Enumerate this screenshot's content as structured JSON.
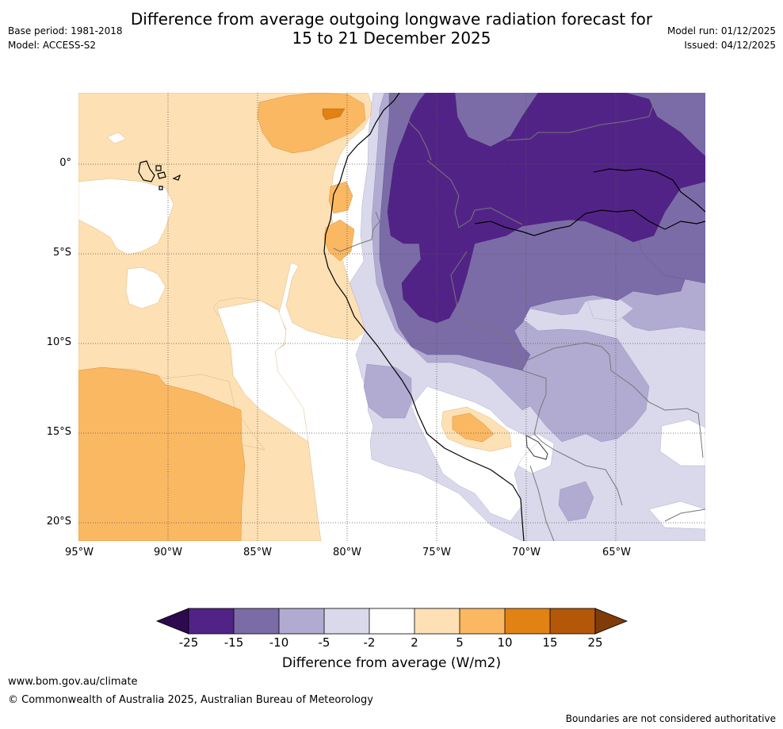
{
  "title": {
    "line1": "Difference from average outgoing longwave radiation forecast for",
    "line2": "15 to 21 December 2025"
  },
  "meta": {
    "base_period": "Base period: 1981-2018",
    "model": "Model: ACCESS-S2",
    "model_run": "Model run: 01/12/2025",
    "issued": "Issued: 04/12/2025"
  },
  "map": {
    "lat_labels": [
      "0°",
      "5°S",
      "10°S",
      "15°S",
      "20°S"
    ],
    "lon_labels": [
      "95°W",
      "90°W",
      "85°W",
      "80°W",
      "75°W",
      "70°W",
      "65°W"
    ]
  },
  "colorbar": {
    "tick_labels": [
      "-25",
      "-15",
      "-10",
      "-5",
      "-2",
      "2",
      "5",
      "10",
      "15",
      "25"
    ],
    "title": "Difference from average (W/m2)",
    "colors": {
      "lt_-25": "#2d0a4e",
      "-25_-15": "#522387",
      "-15_-10": "#7b6ca8",
      "-10_-5": "#b1abd1",
      "-5_-2": "#d9d9eb",
      "-2_2": "#ffffff",
      "2_5": "#fde0b4",
      "5_10": "#fbb862",
      "10_15": "#e08214",
      "15_25": "#b35808",
      "gt_25": "#7f3b08"
    }
  },
  "footer": {
    "url": "www.bom.gov.au/climate",
    "copyright": "© Commonwealth of Australia 2025, Australian Bureau of Meteorology",
    "disclaimer": "Boundaries are not considered authoritative"
  }
}
